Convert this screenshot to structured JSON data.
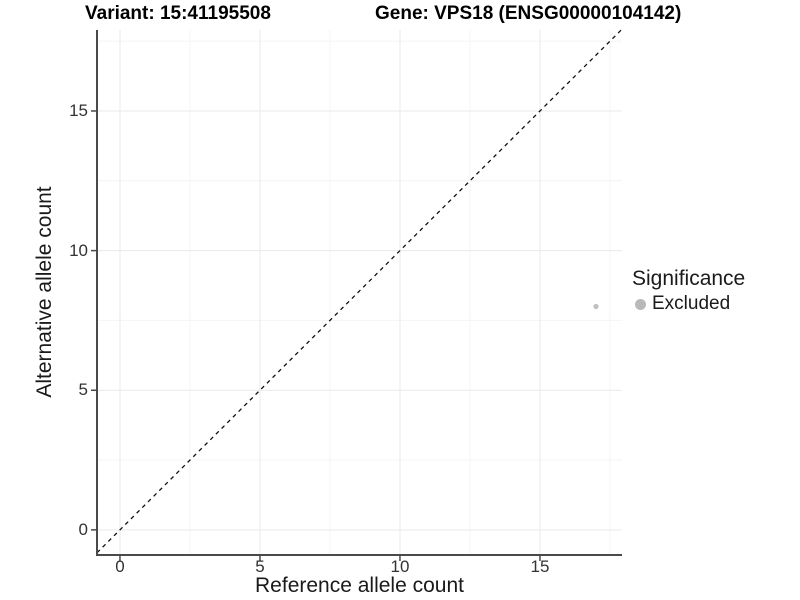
{
  "titles": {
    "variant": "Variant: 15:41195508",
    "gene": "Gene: VPS18 (ENSG00000104142)"
  },
  "chart_data": {
    "type": "scatter",
    "title_left": "Variant: 15:41195508",
    "title_right": "Gene: VPS18 (ENSG00000104142)",
    "xlabel": "Reference allele count",
    "ylabel": "Alternative allele count",
    "x_ticks": [
      0,
      5,
      10,
      15
    ],
    "y_ticks": [
      0,
      5,
      10,
      15
    ],
    "minor_tick_step": 2.5,
    "xlim": [
      -0.82,
      17.93
    ],
    "ylim": [
      -0.9,
      17.9
    ],
    "grid": "major+minor",
    "points": [
      {
        "x": 17,
        "y": 8,
        "significance": "Excluded"
      }
    ],
    "point_color": "#c0c0c0",
    "reference_line": {
      "type": "identity",
      "slope": 1,
      "intercept": 0,
      "style": "dashed",
      "color": "#111111"
    },
    "legend": {
      "title": "Significance",
      "position": "right",
      "entries": [
        {
          "label": "Excluded",
          "color": "#b9b9b9"
        }
      ]
    },
    "colors": {
      "axis_line": "#4a4a4a",
      "tick_text": "#333333",
      "grid_major": "#e9e9e9",
      "grid_minor": "#f4f4f4"
    }
  }
}
